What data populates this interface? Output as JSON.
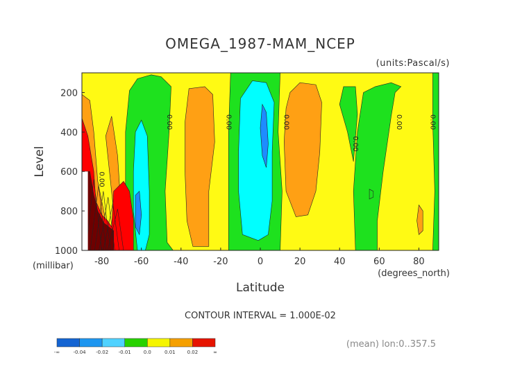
{
  "chart_data": {
    "type": "contour",
    "title": "OMEGA_1987-MAM_NCEP",
    "units_label": "(units:Pascal/s)",
    "ylabel": "Level",
    "yunits": "(millibar)",
    "xlabel": "Latitude",
    "xunits": "(degrees_north)",
    "xlim": [
      -90,
      90
    ],
    "ylim": [
      1000,
      100
    ],
    "xticks": [
      -80,
      -60,
      -40,
      -20,
      0,
      20,
      40,
      60,
      80
    ],
    "xtick_labels": [
      "-80",
      "-60",
      "-40",
      "-20",
      "0",
      "20",
      "40",
      "60",
      "80"
    ],
    "yticks": [
      200,
      400,
      600,
      800,
      1000
    ],
    "ytick_labels": [
      "200",
      "400",
      "600",
      "800",
      "1000"
    ],
    "contour_interval_text": "CONTOUR INTERVAL = 1.000E-02",
    "footer_text": "(mean) lon:0..357.5",
    "contour_labels": [
      {
        "text": "0.00",
        "lat": -47,
        "level": 350
      },
      {
        "text": "0.00",
        "lat": -17,
        "level": 350
      },
      {
        "text": "0.00",
        "lat": 12,
        "level": 350
      },
      {
        "text": "0.00",
        "lat": 47,
        "level": 460
      },
      {
        "text": "0.00",
        "lat": 69,
        "level": 350
      },
      {
        "text": "0.00",
        "lat": 86,
        "level": 350
      },
      {
        "text": "0.00",
        "lat": -81,
        "level": 640
      }
    ],
    "legend": {
      "colors": [
        "#1464d2",
        "#1e96f0",
        "#50d2ff",
        "#28d200",
        "#f5f500",
        "#f5a000",
        "#e61400"
      ],
      "labels": [
        "-∞",
        "-0.04",
        "-0.02",
        "-0.01",
        "0.0",
        "0.01",
        "0.02",
        "∞"
      ]
    },
    "fill_colors": {
      "positive_low": "#fffa14",
      "positive_mid": "#ffa014",
      "positive_high": "#ff0000",
      "negative_low": "#1ee11e",
      "negative_mid": "#00ffff",
      "negative_high": "#1e8cff",
      "extreme": "#6e0000"
    }
  }
}
